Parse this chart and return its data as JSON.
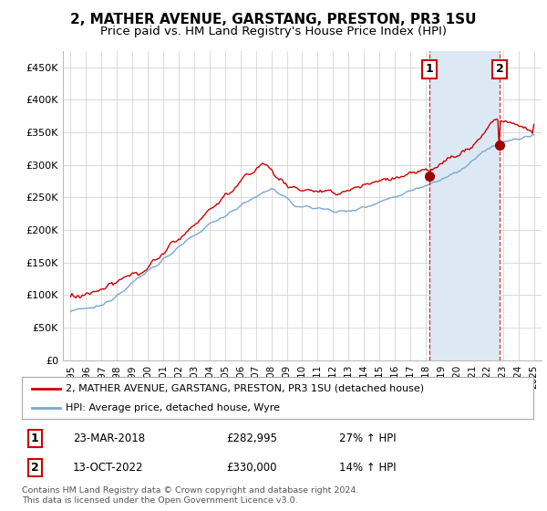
{
  "title": "2, MATHER AVENUE, GARSTANG, PRESTON, PR3 1SU",
  "subtitle": "Price paid vs. HM Land Registry's House Price Index (HPI)",
  "ylabel_ticks": [
    "£0",
    "£50K",
    "£100K",
    "£150K",
    "£200K",
    "£250K",
    "£300K",
    "£350K",
    "£400K",
    "£450K"
  ],
  "ylim": [
    0,
    475000
  ],
  "yticks": [
    0,
    50000,
    100000,
    150000,
    200000,
    250000,
    300000,
    350000,
    400000,
    450000
  ],
  "line1_color": "#cc0000",
  "line2_color": "#7aa8d2",
  "shade_color": "#dce9f5",
  "marker1_year": 2018.22,
  "marker1_value": 282995,
  "marker2_year": 2022.79,
  "marker2_value": 330000,
  "vline1_year": 2018.22,
  "vline2_year": 2022.79,
  "legend_line1": "2, MATHER AVENUE, GARSTANG, PRESTON, PR3 1SU (detached house)",
  "legend_line2": "HPI: Average price, detached house, Wyre",
  "ann1_label": "1",
  "ann2_label": "2",
  "table_row1": [
    "1",
    "23-MAR-2018",
    "£282,995",
    "27% ↑ HPI"
  ],
  "table_row2": [
    "2",
    "13-OCT-2022",
    "£330,000",
    "14% ↑ HPI"
  ],
  "footer": "Contains HM Land Registry data © Crown copyright and database right 2024.\nThis data is licensed under the Open Government Licence v3.0.",
  "background_color": "#ffffff",
  "grid_color": "#cccccc",
  "title_fontsize": 11,
  "subtitle_fontsize": 9.5
}
